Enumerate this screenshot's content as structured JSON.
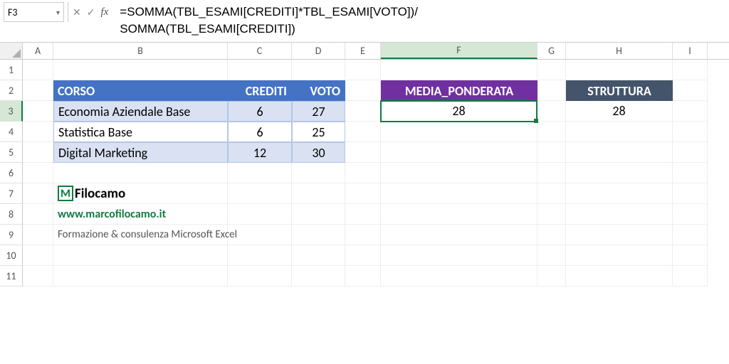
{
  "name_box": "F3",
  "formula": "=SOMMA(TBL_ESAMI[CREDITI]*TBL_ESAMI[VOTO])/\nSOMMA(TBL_ESAMI[CREDITI])",
  "columns": [
    "A",
    "B",
    "C",
    "D",
    "E",
    "F",
    "G",
    "H",
    "I"
  ],
  "rows": [
    "1",
    "2",
    "3",
    "4",
    "5",
    "6",
    "7",
    "8",
    "9",
    "10",
    "11"
  ],
  "selected_col": "F",
  "selected_row": "3",
  "table": {
    "headers": [
      "CORSO",
      "CREDITI",
      "VOTO"
    ],
    "rows": [
      {
        "corso": "Economia Aziendale Base",
        "crediti": "6",
        "voto": "27"
      },
      {
        "corso": "Statistica Base",
        "crediti": "6",
        "voto": "25"
      },
      {
        "corso": "Digital Marketing",
        "crediti": "12",
        "voto": "30"
      }
    ]
  },
  "media": {
    "header": "MEDIA_PONDERATA",
    "value": "28"
  },
  "struttura": {
    "header": "STRUTTURA",
    "value": "28"
  },
  "brand": {
    "name": "Filocamo",
    "url": "www.marcofilocamo.it",
    "tagline": "Formazione & consulenza Microsoft Excel"
  },
  "colors": {
    "col_sel": "#d6e7d6",
    "accent": "#107c41"
  }
}
